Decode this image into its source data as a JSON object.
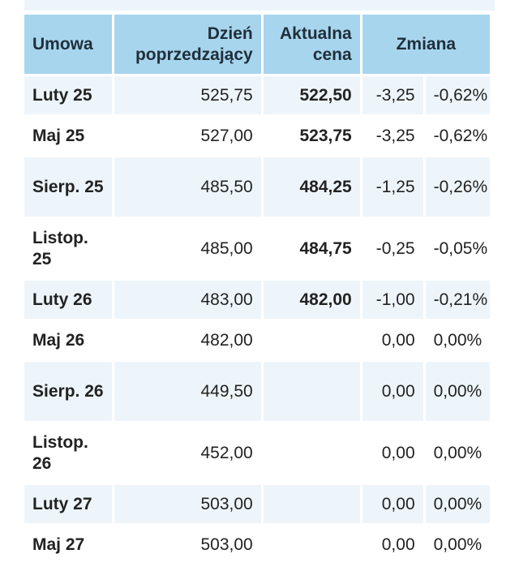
{
  "header": {
    "contract": "Umowa",
    "previous_day": "Dzień poprzedzający",
    "current_price": "Aktualna cena",
    "change": "Zmiana"
  },
  "rows": [
    {
      "contract": "Luty 25",
      "prev": "525,75",
      "price": "522,50",
      "change": "-3,25",
      "pct": "-0,62%",
      "negative": true
    },
    {
      "contract": "Maj 25",
      "prev": "527,00",
      "price": "523,75",
      "change": "-3,25",
      "pct": "-0,62%",
      "negative": true
    },
    {
      "contract": "Sierp. 25",
      "prev": "485,50",
      "price": "484,25",
      "change": "-1,25",
      "pct": "-0,26%",
      "negative": true
    },
    {
      "contract": "Listop. 25",
      "prev": "485,00",
      "price": "484,75",
      "change": "-0,25",
      "pct": "-0,05%",
      "negative": true
    },
    {
      "contract": "Luty 26",
      "prev": "483,00",
      "price": "482,00",
      "change": "-1,00",
      "pct": "-0,21%",
      "negative": true
    },
    {
      "contract": "Maj 26",
      "prev": "482,00",
      "price": "",
      "change": "0,00",
      "pct": "0,00%",
      "negative": false
    },
    {
      "contract": "Sierp. 26",
      "prev": "449,50",
      "price": "",
      "change": "0,00",
      "pct": "0,00%",
      "negative": false
    },
    {
      "contract": "Listop. 26",
      "prev": "452,00",
      "price": "",
      "change": "0,00",
      "pct": "0,00%",
      "negative": false
    },
    {
      "contract": "Luty 27",
      "prev": "503,00",
      "price": "",
      "change": "0,00",
      "pct": "0,00%",
      "negative": false
    },
    {
      "contract": "Maj 27",
      "prev": "503,00",
      "price": "",
      "change": "0,00",
      "pct": "0,00%",
      "negative": false
    }
  ],
  "colors": {
    "header_bg": "#a8d5ee",
    "row_shade": "#eef5fa",
    "negative": "#d42a26",
    "text": "#222222"
  }
}
